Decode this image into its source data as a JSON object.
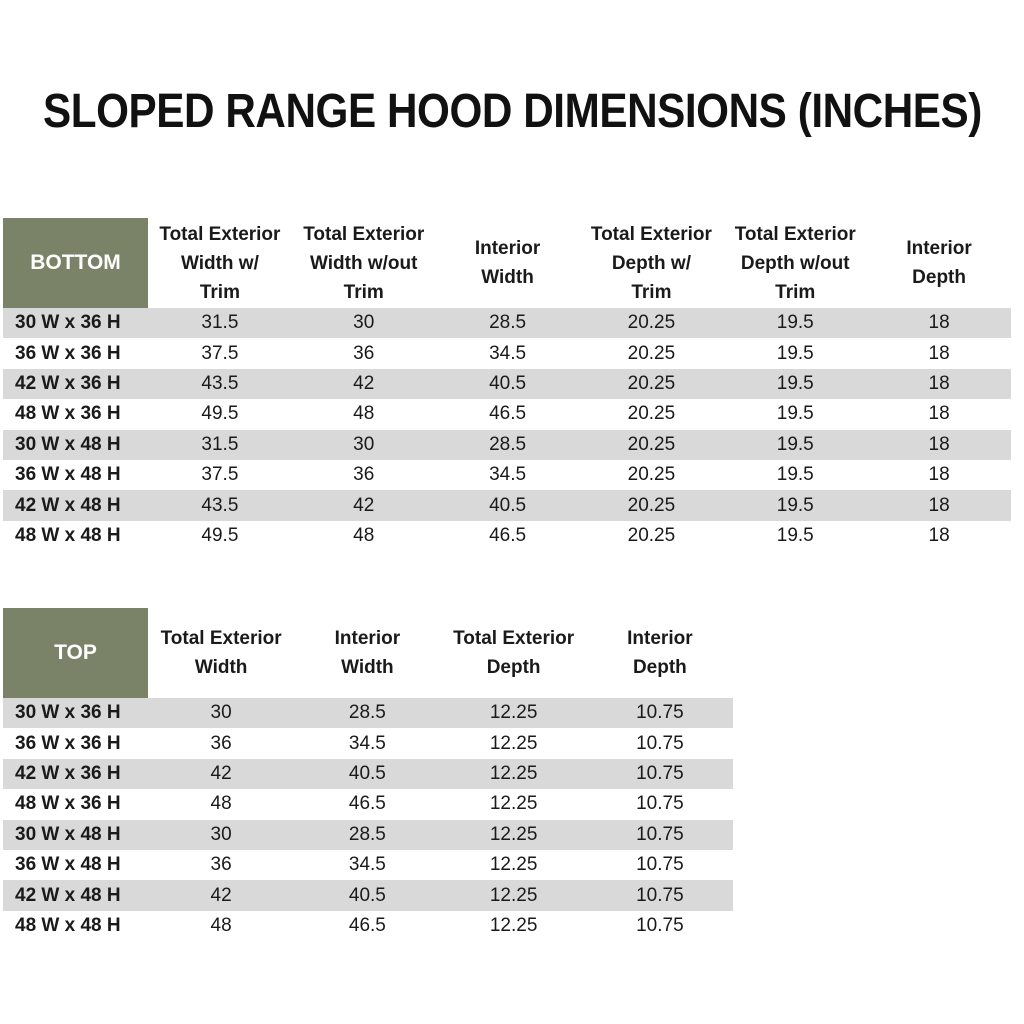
{
  "title": "SLOPED RANGE HOOD DIMENSIONS (INCHES)",
  "colors": {
    "header_green": "#7A8268",
    "row_stripe_gray": "#D9D9D9",
    "text": "#1A1A1A",
    "corner_text": "#FFFFFF",
    "background": "#FFFFFF"
  },
  "tables": [
    {
      "label": "BOTTOM",
      "columns": [
        "Total Exterior\nWidth w/\nTrim",
        "Total Exterior\nWidth w/out\nTrim",
        "Interior\nWidth",
        "Total Exterior\nDepth w/\nTrim",
        "Total Exterior\nDepth w/out\nTrim",
        "Interior\nDepth"
      ],
      "rows": [
        {
          "size": "30 W x 36 H",
          "values": [
            "31.5",
            "30",
            "28.5",
            "20.25",
            "19.5",
            "18"
          ]
        },
        {
          "size": "36 W x 36 H",
          "values": [
            "37.5",
            "36",
            "34.5",
            "20.25",
            "19.5",
            "18"
          ]
        },
        {
          "size": "42 W x 36 H",
          "values": [
            "43.5",
            "42",
            "40.5",
            "20.25",
            "19.5",
            "18"
          ]
        },
        {
          "size": "48 W x 36 H",
          "values": [
            "49.5",
            "48",
            "46.5",
            "20.25",
            "19.5",
            "18"
          ]
        },
        {
          "size": "30 W x 48 H",
          "values": [
            "31.5",
            "30",
            "28.5",
            "20.25",
            "19.5",
            "18"
          ]
        },
        {
          "size": "36 W x 48 H",
          "values": [
            "37.5",
            "36",
            "34.5",
            "20.25",
            "19.5",
            "18"
          ]
        },
        {
          "size": "42 W x 48 H",
          "values": [
            "43.5",
            "42",
            "40.5",
            "20.25",
            "19.5",
            "18"
          ]
        },
        {
          "size": "48 W x 48 H",
          "values": [
            "49.5",
            "48",
            "46.5",
            "20.25",
            "19.5",
            "18"
          ]
        }
      ]
    },
    {
      "label": "TOP",
      "columns": [
        "Total Exterior\nWidth",
        "Interior\nWidth",
        "Total Exterior\nDepth",
        "Interior\nDepth"
      ],
      "rows": [
        {
          "size": "30 W x 36 H",
          "values": [
            "30",
            "28.5",
            "12.25",
            "10.75"
          ]
        },
        {
          "size": "36 W x 36 H",
          "values": [
            "36",
            "34.5",
            "12.25",
            "10.75"
          ]
        },
        {
          "size": "42 W x 36 H",
          "values": [
            "42",
            "40.5",
            "12.25",
            "10.75"
          ]
        },
        {
          "size": "48 W x 36 H",
          "values": [
            "48",
            "46.5",
            "12.25",
            "10.75"
          ]
        },
        {
          "size": "30 W x 48 H",
          "values": [
            "30",
            "28.5",
            "12.25",
            "10.75"
          ]
        },
        {
          "size": "36 W x 48 H",
          "values": [
            "36",
            "34.5",
            "12.25",
            "10.75"
          ]
        },
        {
          "size": "42 W x 48 H",
          "values": [
            "42",
            "40.5",
            "12.25",
            "10.75"
          ]
        },
        {
          "size": "48 W x 48 H",
          "values": [
            "48",
            "46.5",
            "12.25",
            "10.75"
          ]
        }
      ]
    }
  ]
}
